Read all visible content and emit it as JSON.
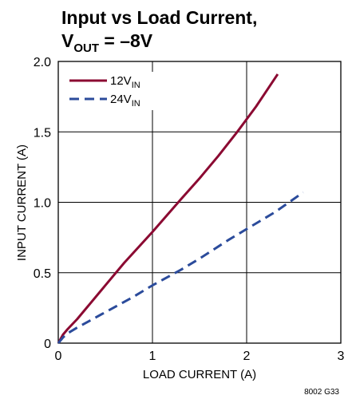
{
  "chart_data": {
    "type": "line",
    "title": {
      "line1": "Input vs Load Current,",
      "line2_main": "V",
      "line2_sub": "OUT",
      "line2_rest": " = –8V"
    },
    "xlabel": "LOAD CURRENT (A)",
    "ylabel": "INPUT CURRENT (A)",
    "xlim": [
      0,
      3
    ],
    "ylim": [
      0,
      2
    ],
    "x_ticks": [
      0,
      1,
      2,
      3
    ],
    "x_tick_labels": [
      "0",
      "1",
      "2",
      "3"
    ],
    "y_ticks": [
      0,
      0.5,
      1,
      1.5,
      2
    ],
    "y_tick_labels": [
      "0",
      "0.5",
      "1.0",
      "1.5",
      "2.0"
    ],
    "grid": true,
    "legend_position": "top-left",
    "series": [
      {
        "name_main": "12V",
        "name_sub": "IN",
        "color": "#8b0a32",
        "style": "solid",
        "x": [
          0,
          0.05,
          0.1,
          0.2,
          0.3,
          0.5,
          0.7,
          1.0,
          1.3,
          1.5,
          1.7,
          1.9,
          2.1,
          2.3,
          2.33
        ],
        "y": [
          0,
          0.06,
          0.1,
          0.17,
          0.25,
          0.41,
          0.57,
          0.79,
          1.02,
          1.17,
          1.33,
          1.5,
          1.68,
          1.88,
          1.91
        ]
      },
      {
        "name_main": "24V",
        "name_sub": "IN",
        "color": "#2b4b9b",
        "style": "dashed",
        "x": [
          0,
          0.05,
          0.1,
          0.2,
          0.5,
          0.8,
          1.0,
          1.3,
          1.5,
          1.8,
          2.0,
          2.3,
          2.6
        ],
        "y": [
          0,
          0.04,
          0.07,
          0.11,
          0.22,
          0.33,
          0.41,
          0.52,
          0.6,
          0.73,
          0.81,
          0.93,
          1.07
        ]
      }
    ],
    "note": "8002 G33"
  }
}
